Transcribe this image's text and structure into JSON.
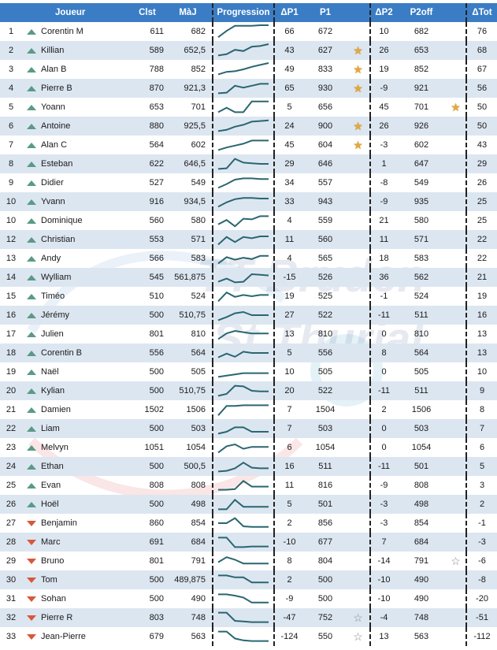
{
  "header": {
    "rank": "",
    "trend": "",
    "player": "Joueur",
    "clst": "Clst",
    "maj": "MàJ",
    "progression": "Progression",
    "dp1": "ΔP1",
    "p1": "P1",
    "star1": "",
    "dp2": "ΔP2",
    "p2off": "P2off",
    "star2": "",
    "dtot": "ΔTot"
  },
  "colors": {
    "header_bg": "#3b7dc4",
    "stripe": "#dce6f1",
    "up": "#5a9a86",
    "down": "#d8583a",
    "spark": "#2a6670",
    "gold_star": "#e5a83a"
  },
  "rows": [
    {
      "rank": "1",
      "trend": "up",
      "player": "Corentin M",
      "clst": "611",
      "maj": "682",
      "dp1": "66",
      "p1": "672",
      "star1": "",
      "dp2": "10",
      "p2off": "682",
      "star2": "",
      "dtot": "76",
      "spark": [
        0.05,
        0.55,
        0.95,
        0.95,
        0.95,
        1,
        1
      ]
    },
    {
      "rank": "2",
      "trend": "up",
      "player": "Killian",
      "clst": "589",
      "maj": "652,5",
      "dp1": "43",
      "p1": "627",
      "star1": "gold",
      "dp2": "26",
      "p2off": "653",
      "star2": "",
      "dtot": "68",
      "spark": [
        0.1,
        0.2,
        0.55,
        0.45,
        0.8,
        0.85,
        1
      ]
    },
    {
      "rank": "3",
      "trend": "up",
      "player": "Alan B",
      "clst": "788",
      "maj": "852",
      "dp1": "49",
      "p1": "833",
      "star1": "gold",
      "dp2": "19",
      "p2off": "852",
      "star2": "",
      "dtot": "67",
      "spark": [
        0.1,
        0.3,
        0.35,
        0.5,
        0.7,
        0.85,
        1
      ]
    },
    {
      "rank": "4",
      "trend": "up",
      "player": "Pierre B",
      "clst": "870",
      "maj": "921,3",
      "dp1": "65",
      "p1": "930",
      "star1": "gold",
      "dp2": "-9",
      "p2off": "921",
      "star2": "",
      "dtot": "56",
      "spark": [
        0.1,
        0.15,
        0.7,
        0.55,
        0.7,
        0.85,
        0.85
      ]
    },
    {
      "rank": "5",
      "trend": "up",
      "player": "Yoann",
      "clst": "653",
      "maj": "701",
      "dp1": "5",
      "p1": "656",
      "star1": "",
      "dp2": "45",
      "p2off": "701",
      "star2": "gold",
      "dtot": "50",
      "spark": [
        0.1,
        0.45,
        0.1,
        0.1,
        0.95,
        0.95,
        0.95
      ]
    },
    {
      "rank": "6",
      "trend": "up",
      "player": "Antoine",
      "clst": "880",
      "maj": "925,5",
      "dp1": "24",
      "p1": "900",
      "star1": "gold",
      "dp2": "26",
      "p2off": "926",
      "star2": "",
      "dtot": "50",
      "spark": [
        0.1,
        0.2,
        0.45,
        0.6,
        0.85,
        0.9,
        0.95
      ]
    },
    {
      "rank": "7",
      "trend": "up",
      "player": "Alan C",
      "clst": "564",
      "maj": "602",
      "dp1": "45",
      "p1": "604",
      "star1": "gold",
      "dp2": "-3",
      "p2off": "602",
      "star2": "",
      "dtot": "43",
      "spark": [
        0.1,
        0.3,
        0.45,
        0.6,
        0.85,
        0.85,
        0.85
      ]
    },
    {
      "rank": "8",
      "trend": "up",
      "player": "Esteban",
      "clst": "622",
      "maj": "646,5",
      "dp1": "29",
      "p1": "646",
      "star1": "",
      "dp2": "1",
      "p2off": "647",
      "star2": "",
      "dtot": "29",
      "spark": [
        0.1,
        0.15,
        0.9,
        0.6,
        0.55,
        0.5,
        0.5
      ]
    },
    {
      "rank": "9",
      "trend": "up",
      "player": "Didier",
      "clst": "527",
      "maj": "549",
      "dp1": "34",
      "p1": "557",
      "star1": "",
      "dp2": "-8",
      "p2off": "549",
      "star2": "",
      "dtot": "26",
      "spark": [
        0.1,
        0.4,
        0.75,
        0.85,
        0.85,
        0.8,
        0.8
      ]
    },
    {
      "rank": "10",
      "trend": "up",
      "player": "Yvann",
      "clst": "916",
      "maj": "934,5",
      "dp1": "33",
      "p1": "943",
      "star1": "",
      "dp2": "-9",
      "p2off": "935",
      "star2": "",
      "dtot": "25",
      "spark": [
        0.1,
        0.45,
        0.7,
        0.8,
        0.8,
        0.75,
        0.75
      ]
    },
    {
      "rank": "10",
      "trend": "up",
      "player": "Dominique",
      "clst": "560",
      "maj": "580",
      "dp1": "4",
      "p1": "559",
      "star1": "",
      "dp2": "21",
      "p2off": "580",
      "star2": "",
      "dtot": "25",
      "spark": [
        0.2,
        0.55,
        0.05,
        0.65,
        0.6,
        0.85,
        0.85
      ]
    },
    {
      "rank": "12",
      "trend": "up",
      "player": "Christian",
      "clst": "553",
      "maj": "571",
      "dp1": "11",
      "p1": "560",
      "star1": "",
      "dp2": "11",
      "p2off": "571",
      "star2": "",
      "dtot": "22",
      "spark": [
        0.1,
        0.7,
        0.3,
        0.7,
        0.6,
        0.75,
        0.75
      ]
    },
    {
      "rank": "13",
      "trend": "up",
      "player": "Andy",
      "clst": "566",
      "maj": "583",
      "dp1": "4",
      "p1": "565",
      "star1": "",
      "dp2": "18",
      "p2off": "583",
      "star2": "",
      "dtot": "22",
      "spark": [
        0.1,
        0.6,
        0.4,
        0.55,
        0.45,
        0.7,
        0.7
      ]
    },
    {
      "rank": "14",
      "trend": "up",
      "player": "Wylliam",
      "clst": "545",
      "maj": "561,875",
      "dp1": "-15",
      "p1": "526",
      "star1": "",
      "dp2": "36",
      "p2off": "562",
      "star2": "",
      "dtot": "21",
      "spark": [
        0.15,
        0.4,
        0.1,
        0.15,
        0.75,
        0.7,
        0.65
      ]
    },
    {
      "rank": "15",
      "trend": "up",
      "player": "Timéo",
      "clst": "510",
      "maj": "524",
      "dp1": "19",
      "p1": "525",
      "star1": "",
      "dp2": "-1",
      "p2off": "524",
      "star2": "",
      "dtot": "19",
      "spark": [
        0.1,
        0.8,
        0.45,
        0.6,
        0.5,
        0.6,
        0.6
      ]
    },
    {
      "rank": "16",
      "trend": "up",
      "player": "Jérémy",
      "clst": "500",
      "maj": "510,75",
      "dp1": "27",
      "p1": "522",
      "star1": "",
      "dp2": "-11",
      "p2off": "511",
      "star2": "",
      "dtot": "16",
      "spark": [
        0.1,
        0.35,
        0.65,
        0.75,
        0.5,
        0.5,
        0.5
      ]
    },
    {
      "rank": "17",
      "trend": "up",
      "player": "Julien",
      "clst": "801",
      "maj": "810",
      "dp1": "13",
      "p1": "810",
      "star1": "",
      "dp2": "0",
      "p2off": "810",
      "star2": "",
      "dtot": "13",
      "spark": [
        0.1,
        0.55,
        0.75,
        0.65,
        0.55,
        0.55,
        0.55
      ]
    },
    {
      "rank": "18",
      "trend": "up",
      "player": "Corentin B",
      "clst": "556",
      "maj": "564",
      "dp1": "5",
      "p1": "556",
      "star1": "",
      "dp2": "8",
      "p2off": "564",
      "star2": "",
      "dtot": "13",
      "spark": [
        0.15,
        0.45,
        0.2,
        0.6,
        0.5,
        0.5,
        0.5
      ]
    },
    {
      "rank": "19",
      "trend": "up",
      "player": "Naël",
      "clst": "500",
      "maj": "505",
      "dp1": "10",
      "p1": "505",
      "star1": "",
      "dp2": "0",
      "p2off": "505",
      "star2": "",
      "dtot": "10",
      "spark": [
        0.1,
        0.2,
        0.3,
        0.4,
        0.4,
        0.4,
        0.4
      ]
    },
    {
      "rank": "20",
      "trend": "up",
      "player": "Kylian",
      "clst": "500",
      "maj": "510,75",
      "dp1": "20",
      "p1": "522",
      "star1": "",
      "dp2": "-11",
      "p2off": "511",
      "star2": "",
      "dtot": "9",
      "spark": [
        0.1,
        0.25,
        0.9,
        0.85,
        0.5,
        0.45,
        0.45
      ]
    },
    {
      "rank": "21",
      "trend": "up",
      "player": "Damien",
      "clst": "1502",
      "maj": "1506",
      "dp1": "7",
      "p1": "1504",
      "star1": "",
      "dp2": "2",
      "p2off": "1506",
      "star2": "",
      "dtot": "8",
      "spark": [
        0.05,
        0.8,
        0.8,
        0.85,
        0.85,
        0.85,
        0.85
      ]
    },
    {
      "rank": "22",
      "trend": "up",
      "player": "Liam",
      "clst": "500",
      "maj": "503",
      "dp1": "7",
      "p1": "503",
      "star1": "",
      "dp2": "0",
      "p2off": "503",
      "star2": "",
      "dtot": "7",
      "spark": [
        0.1,
        0.25,
        0.6,
        0.6,
        0.25,
        0.25,
        0.25
      ]
    },
    {
      "rank": "23",
      "trend": "up",
      "player": "Melvyn",
      "clst": "1051",
      "maj": "1054",
      "dp1": "6",
      "p1": "1054",
      "star1": "",
      "dp2": "0",
      "p2off": "1054",
      "star2": "",
      "dtot": "6",
      "spark": [
        0.1,
        0.6,
        0.75,
        0.4,
        0.55,
        0.55,
        0.55
      ]
    },
    {
      "rank": "24",
      "trend": "up",
      "player": "Ethan",
      "clst": "500",
      "maj": "500,5",
      "dp1": "16",
      "p1": "511",
      "star1": "",
      "dp2": "-11",
      "p2off": "501",
      "star2": "",
      "dtot": "5",
      "spark": [
        0.1,
        0.15,
        0.35,
        0.8,
        0.4,
        0.35,
        0.35
      ]
    },
    {
      "rank": "25",
      "trend": "up",
      "player": "Evan",
      "clst": "808",
      "maj": "808",
      "dp1": "11",
      "p1": "816",
      "star1": "",
      "dp2": "-9",
      "p2off": "808",
      "star2": "",
      "dtot": "3",
      "spark": [
        0.15,
        0.15,
        0.2,
        0.85,
        0.4,
        0.4,
        0.4
      ]
    },
    {
      "rank": "26",
      "trend": "up",
      "player": "Hoël",
      "clst": "500",
      "maj": "498",
      "dp1": "5",
      "p1": "501",
      "star1": "",
      "dp2": "-3",
      "p2off": "498",
      "star2": "",
      "dtot": "2",
      "spark": [
        0.1,
        0.1,
        0.85,
        0.3,
        0.3,
        0.3,
        0.3
      ]
    },
    {
      "rank": "27",
      "trend": "down",
      "player": "Benjamin",
      "clst": "860",
      "maj": "854",
      "dp1": "2",
      "p1": "856",
      "star1": "",
      "dp2": "-3",
      "p2off": "854",
      "star2": "",
      "dtot": "-1",
      "spark": [
        0.5,
        0.5,
        0.9,
        0.25,
        0.2,
        0.2,
        0.2
      ]
    },
    {
      "rank": "28",
      "trend": "down",
      "player": "Marc",
      "clst": "691",
      "maj": "684",
      "dp1": "-10",
      "p1": "677",
      "star1": "",
      "dp2": "7",
      "p2off": "684",
      "star2": "",
      "dtot": "-3",
      "spark": [
        0.85,
        0.85,
        0.1,
        0.1,
        0.15,
        0.15,
        0.15
      ]
    },
    {
      "rank": "29",
      "trend": "down",
      "player": "Bruno",
      "clst": "801",
      "maj": "791",
      "dp1": "8",
      "p1": "804",
      "star1": "",
      "dp2": "-14",
      "p2off": "791",
      "star2": "outline",
      "dtot": "-6",
      "spark": [
        0.4,
        0.8,
        0.6,
        0.3,
        0.3,
        0.3,
        0.3
      ]
    },
    {
      "rank": "30",
      "trend": "down",
      "player": "Tom",
      "clst": "500",
      "maj": "489,875",
      "dp1": "2",
      "p1": "500",
      "star1": "",
      "dp2": "-10",
      "p2off": "490",
      "star2": "",
      "dtot": "-8",
      "spark": [
        0.85,
        0.85,
        0.7,
        0.7,
        0.3,
        0.3,
        0.3
      ]
    },
    {
      "rank": "31",
      "trend": "down",
      "player": "Sohan",
      "clst": "500",
      "maj": "490",
      "dp1": "-9",
      "p1": "500",
      "star1": "",
      "dp2": "-10",
      "p2off": "490",
      "star2": "",
      "dtot": "-20",
      "spark": [
        0.85,
        0.85,
        0.75,
        0.6,
        0.2,
        0.2,
        0.2
      ]
    },
    {
      "rank": "32",
      "trend": "down",
      "player": "Pierre R",
      "clst": "803",
      "maj": "748",
      "dp1": "-47",
      "p1": "752",
      "star1": "outline",
      "dp2": "-4",
      "p2off": "748",
      "star2": "",
      "dtot": "-51",
      "spark": [
        0.9,
        0.9,
        0.25,
        0.2,
        0.15,
        0.15,
        0.15
      ]
    },
    {
      "rank": "33",
      "trend": "down",
      "player": "Jean-Pierre",
      "clst": "679",
      "maj": "563",
      "dp1": "-124",
      "p1": "550",
      "star1": "outline",
      "dp2": "13",
      "p2off": "563",
      "star2": "",
      "dtot": "-112",
      "spark": [
        0.9,
        0.9,
        0.35,
        0.2,
        0.15,
        0.15,
        0.15
      ]
    }
  ]
}
